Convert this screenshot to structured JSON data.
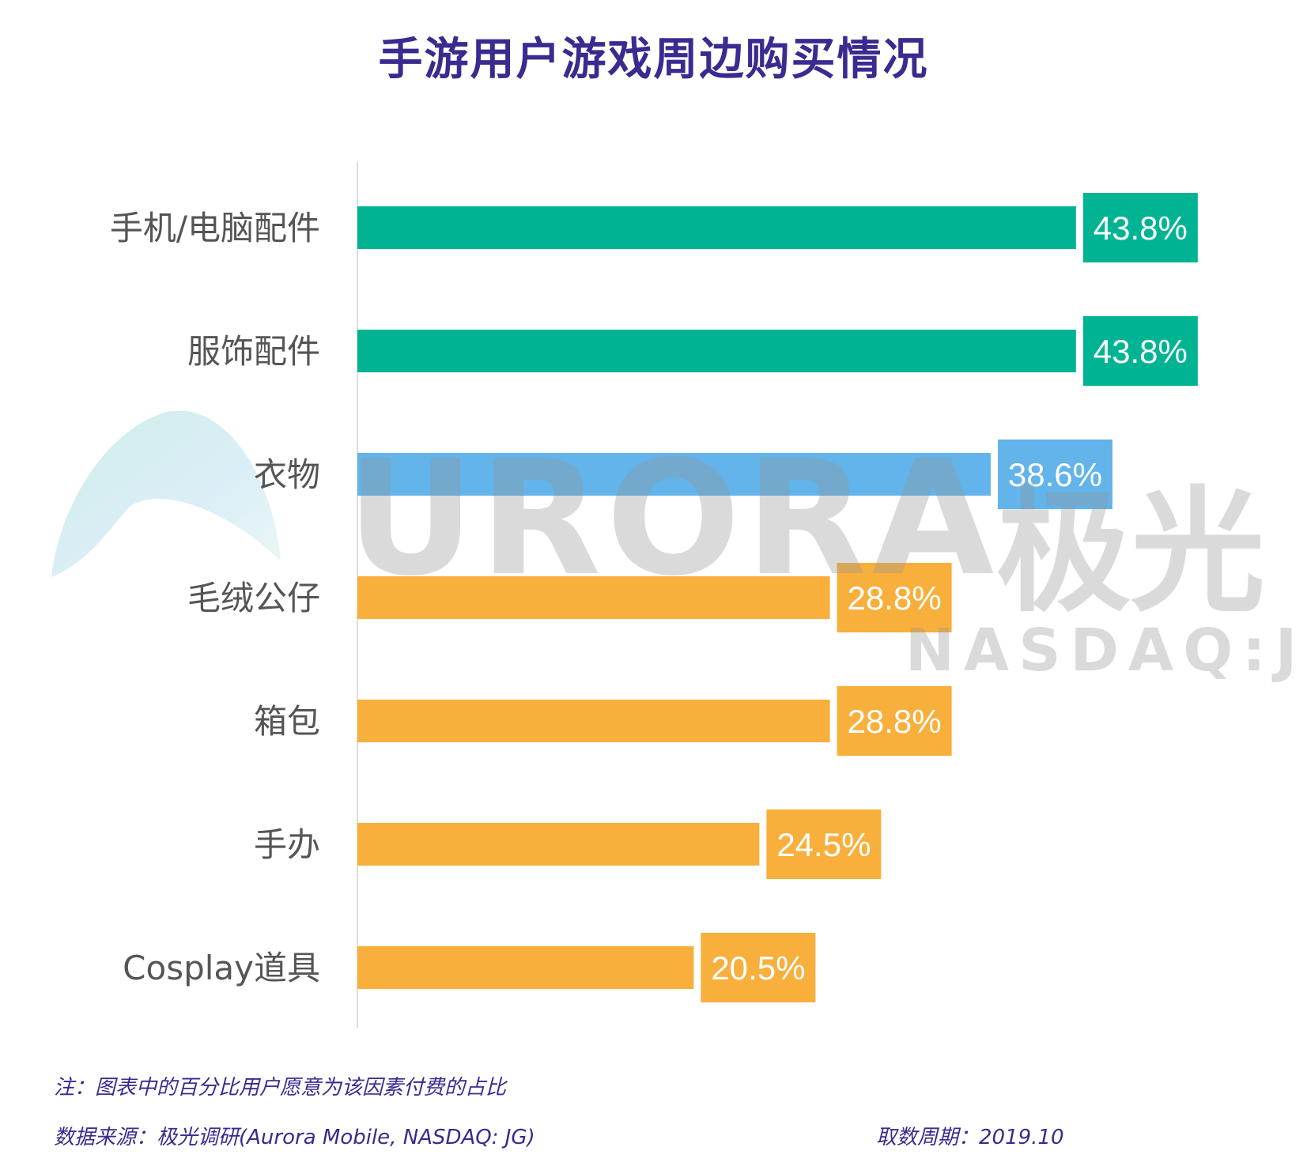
{
  "chart_data": {
    "type": "bar",
    "orientation": "horizontal",
    "title": "手游用户游戏周边购买情况",
    "categories": [
      "手机/电脑配件",
      "服饰配件",
      "衣物",
      "毛绒公仔",
      "箱包",
      "手办",
      "Cosplay道具"
    ],
    "values": [
      43.8,
      43.8,
      38.6,
      28.8,
      28.8,
      24.5,
      20.5
    ],
    "value_labels": [
      "43.8%",
      "43.8%",
      "38.6%",
      "28.8%",
      "28.8%",
      "24.5%",
      "20.5%"
    ],
    "bar_colors": [
      "#00b493",
      "#00b493",
      "#62b4ea",
      "#f8af3c",
      "#f8af3c",
      "#f8af3c",
      "#f8af3c"
    ],
    "xlim": [
      0,
      50
    ],
    "grid": false,
    "legend": "none"
  },
  "notes": {
    "note": "注：图表中的百分比用户愿意为该因素付费的占比",
    "source": "数据来源：极光调研(Aurora Mobile, NASDAQ: JG)",
    "period": "取数周期：2019.10"
  },
  "watermark": {
    "brand": "URORA",
    "brand_cn": "极光",
    "ticker": "NASDAQ:JG"
  }
}
